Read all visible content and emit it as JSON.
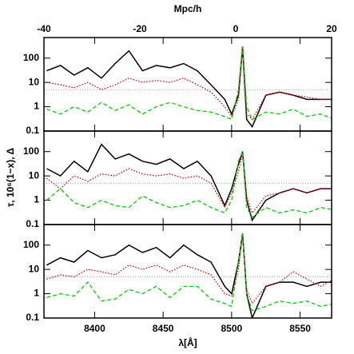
{
  "chart_data": {
    "type": "line",
    "xlabel": "λ[Å]",
    "ylabel": "τ, 10⁶(1−x), Δ",
    "x2label": "Mpc/h",
    "xlim": [
      8363,
      8573
    ],
    "xticks": [
      8400,
      8450,
      8500,
      8550
    ],
    "x2lim": [
      -40,
      20
    ],
    "x2ticks": [
      -40,
      -20,
      0,
      20
    ],
    "ylim": [
      0.1,
      700
    ],
    "yticks": [
      0.1,
      1,
      10,
      100
    ],
    "log_y": true,
    "hline": 5,
    "x": [
      8365,
      8375,
      8385,
      8395,
      8405,
      8415,
      8425,
      8435,
      8445,
      8455,
      8465,
      8475,
      8485,
      8495,
      8500,
      8505,
      8508,
      8511,
      8515,
      8525,
      8535,
      8545,
      8555,
      8565,
      8575
    ],
    "panels": [
      {
        "series": [
          {
            "color": "#000000",
            "style": "solid",
            "values": [
              30,
              50,
              20,
              40,
              15,
              60,
              200,
              30,
              50,
              40,
              60,
              30,
              8,
              2,
              0.5,
              3,
              300,
              0.3,
              0.15,
              3,
              4,
              3,
              2,
              2,
              2
            ]
          },
          {
            "color": "#e00000",
            "style": "dotted",
            "values": [
              10,
              8,
              6,
              10,
              5,
              8,
              15,
              10,
              12,
              10,
              15,
              8,
              4,
              1,
              0.4,
              2,
              250,
              0.5,
              0.3,
              3,
              4,
              3,
              2.5,
              2,
              2
            ]
          },
          {
            "color": "#00cc00",
            "style": "dashed",
            "values": [
              0.8,
              0.5,
              1,
              0.6,
              1.5,
              0.7,
              1.2,
              0.5,
              1,
              1.5,
              1,
              0.7,
              0.6,
              0.4,
              0.3,
              5,
              300,
              1,
              0.3,
              0.6,
              0.5,
              0.8,
              0.4,
              0.5,
              0.3
            ]
          }
        ]
      },
      {
        "series": [
          {
            "color": "#000000",
            "style": "solid",
            "values": [
              20,
              10,
              40,
              15,
              200,
              50,
              80,
              40,
              30,
              50,
              20,
              40,
              10,
              0.6,
              3,
              30,
              100,
              1,
              0.15,
              1,
              2,
              3,
              2,
              3,
              3
            ]
          },
          {
            "color": "#e00000",
            "style": "dotted",
            "values": [
              8,
              3,
              10,
              6,
              12,
              10,
              20,
              12,
              10,
              12,
              8,
              10,
              5,
              0.5,
              2,
              15,
              80,
              1.5,
              0.3,
              1.5,
              2,
              3,
              2,
              3,
              3
            ]
          },
          {
            "color": "#00cc00",
            "style": "dashed",
            "values": [
              1,
              3,
              0.8,
              0.5,
              1,
              0.6,
              0.5,
              1.5,
              0.8,
              0.5,
              0.6,
              1,
              0.5,
              0.3,
              1,
              40,
              100,
              0.5,
              0.2,
              0.5,
              0.3,
              0.4,
              0.3,
              0.5,
              0.4
            ]
          }
        ]
      },
      {
        "series": [
          {
            "color": "#000000",
            "style": "solid",
            "values": [
              15,
              30,
              20,
              60,
              30,
              40,
              100,
              50,
              80,
              30,
              100,
              40,
              20,
              2,
              1,
              20,
              300,
              1,
              0.1,
              2,
              3,
              3,
              2,
              3,
              3
            ]
          },
          {
            "color": "#e00000",
            "style": "dotted",
            "values": [
              4,
              6,
              5,
              10,
              8,
              6,
              15,
              10,
              15,
              8,
              15,
              10,
              6,
              1,
              0.8,
              10,
              250,
              1.5,
              0.4,
              2,
              3,
              8,
              4,
              2,
              4
            ]
          },
          {
            "color": "#00cc00",
            "style": "dashed",
            "values": [
              0.7,
              1,
              0.8,
              3,
              0.5,
              0.6,
              1.5,
              1,
              2,
              0.7,
              2,
              2,
              0.6,
              0.4,
              0.3,
              20,
              300,
              1,
              0.2,
              0.3,
              0.5,
              0.4,
              0.5,
              0.3,
              0.4
            ]
          }
        ]
      }
    ]
  }
}
